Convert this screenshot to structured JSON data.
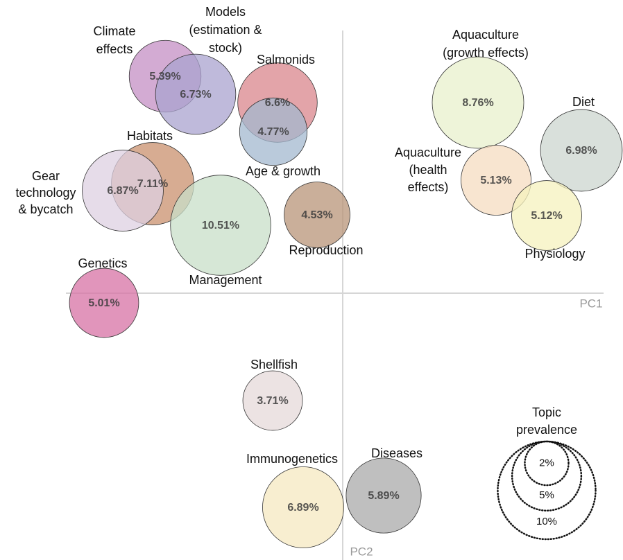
{
  "chart_data": {
    "type": "bubble",
    "x_label": "PC1",
    "y_label": "PC2",
    "labels": [
      [
        "Climate",
        "effects"
      ],
      [
        "Models",
        "(estimation &",
        "stock)"
      ],
      [
        "Salmonids"
      ],
      [
        "Age & growth"
      ],
      [
        "Habitats"
      ],
      [
        "Gear",
        "technology",
        "& bycatch"
      ],
      [
        "Management"
      ],
      [
        "Reproduction"
      ],
      [
        "Genetics"
      ],
      [
        "Aquaculture",
        "(growth effects)"
      ],
      [
        "Diet"
      ],
      [
        "Aquaculture",
        "(health",
        "effects)"
      ],
      [
        "Physiology"
      ],
      [
        "Shellfish"
      ],
      [
        "Immunogenetics"
      ],
      [
        "Diseases"
      ]
    ],
    "values": [
      5.39,
      6.73,
      6.6,
      4.77,
      7.11,
      6.87,
      10.51,
      4.53,
      5.01,
      8.76,
      6.98,
      5.13,
      5.12,
      3.71,
      6.89,
      5.89
    ],
    "value_labels": [
      "5.39%",
      "6.73%",
      "6.6%",
      "4.77%",
      "7.11%",
      "6.87%",
      "10.51%",
      "4.53%",
      "5.01%",
      "8.76%",
      "6.98%",
      "5.13%",
      "5.12%",
      "3.71%",
      "6.89%",
      "5.89%"
    ],
    "colors": [
      "#c48fc4",
      "#a9a3cf",
      "#d9868c",
      "#a3b8cf",
      "#c9906e",
      "#ddd0e2",
      "#c8dfc8",
      "#b89478",
      "#d771a4",
      "#e8f0cc",
      "#ccd6cf",
      "#f5dcc0",
      "#f5f2bd",
      "#e6d9d9",
      "#f5e8c0",
      "#aaaaaa"
    ],
    "size_legend": {
      "title": [
        "Topic",
        "prevalence"
      ],
      "values": [
        {
          "value": 2,
          "label": "2%"
        },
        {
          "value": 5,
          "label": "5%"
        },
        {
          "value": 10,
          "label": "10%"
        }
      ]
    }
  }
}
